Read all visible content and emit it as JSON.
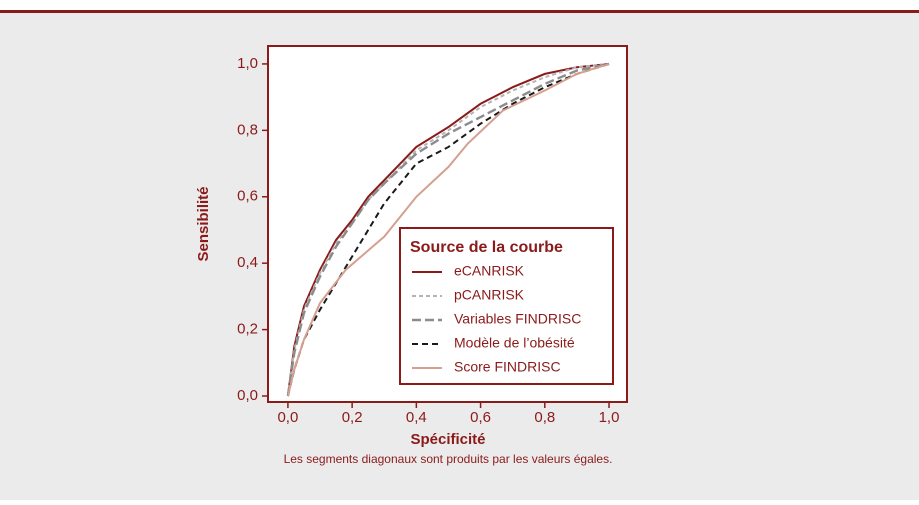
{
  "chart_data": {
    "type": "line",
    "x_label": "Spécificité",
    "y_label": "Sensibilité",
    "note": "Les segments diagonaux sont produits par les valeurs égales.",
    "legend_title": "Source de la courbe",
    "legend": "lower right",
    "xlim": [
      -0.062,
      1.056
    ],
    "ylim": [
      -0.018,
      1.054
    ],
    "xticks": [
      {
        "value": 0,
        "label": "0,0"
      },
      {
        "value": 0.2,
        "label": "0,2"
      },
      {
        "value": 0.4,
        "label": "0,4"
      },
      {
        "value": 0.6,
        "label": "0,6"
      },
      {
        "value": 0.8,
        "label": "0,8"
      },
      {
        "value": 1,
        "label": "1,0"
      }
    ],
    "yticks": [
      {
        "value": 0,
        "label": "0,0"
      },
      {
        "value": 0.2,
        "label": "0,2"
      },
      {
        "value": 0.4,
        "label": "0,4"
      },
      {
        "value": 0.6,
        "label": "0,6"
      },
      {
        "value": 0.8,
        "label": "0,8"
      },
      {
        "value": 1,
        "label": "1,0"
      }
    ],
    "series": [
      {
        "name": "eCANRISK",
        "color": "#8b1a1a",
        "dash": "solid",
        "x": [
          0,
          0.02,
          0.05,
          0.1,
          0.15,
          0.2,
          0.25,
          0.3,
          0.4,
          0.5,
          0.6,
          0.7,
          0.8,
          0.9,
          1
        ],
        "values": [
          0,
          0.15,
          0.27,
          0.38,
          0.47,
          0.53,
          0.6,
          0.65,
          0.75,
          0.81,
          0.88,
          0.93,
          0.97,
          0.99,
          1
        ]
      },
      {
        "name": "pCANRISK",
        "color": "#b4b4b4",
        "dash": "short",
        "x": [
          0,
          0.02,
          0.05,
          0.1,
          0.15,
          0.2,
          0.25,
          0.3,
          0.4,
          0.5,
          0.6,
          0.7,
          0.8,
          0.9,
          1
        ],
        "values": [
          0,
          0.14,
          0.26,
          0.37,
          0.46,
          0.52,
          0.59,
          0.64,
          0.74,
          0.8,
          0.87,
          0.92,
          0.96,
          0.99,
          1
        ]
      },
      {
        "name": "Variables FINDRISC",
        "color": "#8c8c8c",
        "dash": "long",
        "x": [
          0,
          0.02,
          0.05,
          0.1,
          0.15,
          0.2,
          0.25,
          0.3,
          0.4,
          0.5,
          0.6,
          0.7,
          0.8,
          0.9,
          1
        ],
        "values": [
          0,
          0.13,
          0.25,
          0.36,
          0.45,
          0.52,
          0.59,
          0.64,
          0.73,
          0.79,
          0.84,
          0.89,
          0.94,
          0.98,
          1
        ]
      },
      {
        "name": "Modèle de l’obésité",
        "color": "#1a1a1a",
        "dash": "medium",
        "x": [
          0,
          0.02,
          0.05,
          0.1,
          0.15,
          0.2,
          0.25,
          0.3,
          0.4,
          0.5,
          0.6,
          0.7,
          0.8,
          0.9,
          1
        ],
        "values": [
          0,
          0.08,
          0.17,
          0.26,
          0.34,
          0.42,
          0.5,
          0.58,
          0.7,
          0.75,
          0.82,
          0.88,
          0.93,
          0.97,
          1
        ]
      },
      {
        "name": "Score FINDRISC",
        "color": "#d4a090",
        "dash": "solid",
        "x": [
          0,
          0.02,
          0.05,
          0.1,
          0.18,
          0.3,
          0.4,
          0.5,
          0.56,
          0.67,
          0.8,
          0.9,
          1
        ],
        "values": [
          0,
          0.08,
          0.17,
          0.28,
          0.38,
          0.48,
          0.6,
          0.69,
          0.76,
          0.86,
          0.92,
          0.97,
          1
        ]
      }
    ]
  }
}
